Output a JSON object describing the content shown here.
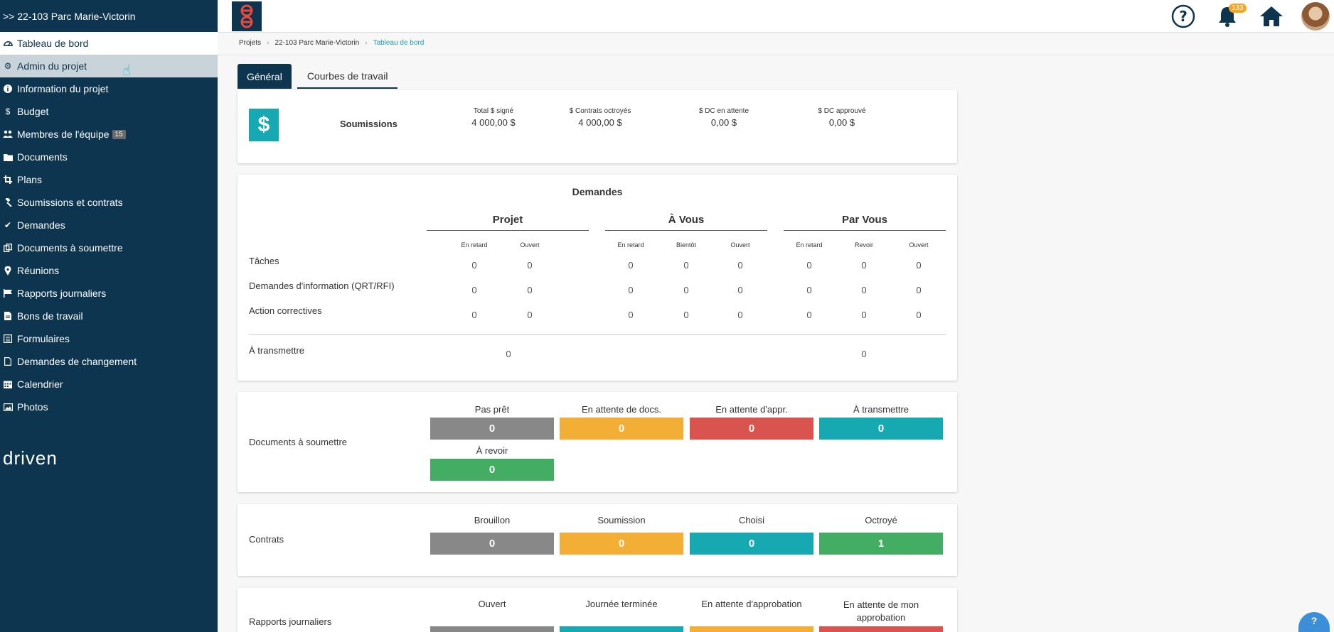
{
  "sidebar": {
    "project_title": ">> 22-103 Parc Marie-Victorin",
    "items": [
      {
        "label": "Tableau de bord",
        "icon": "dashboard-icon"
      },
      {
        "label": "Admin du projet",
        "icon": "gear-icon"
      },
      {
        "label": "Information du projet",
        "icon": "info-icon"
      },
      {
        "label": "Budget",
        "icon": "dollar-icon"
      },
      {
        "label": "Membres de l'équipe",
        "icon": "users-icon",
        "badge": "15"
      },
      {
        "label": "Documents",
        "icon": "folder-icon"
      },
      {
        "label": "Plans",
        "icon": "crop-icon"
      },
      {
        "label": "Soumissions et contrats",
        "icon": "gavel-icon"
      },
      {
        "label": "Demandes",
        "icon": "check-icon"
      },
      {
        "label": "Documents à soumettre",
        "icon": "copy-icon"
      },
      {
        "label": "Réunions",
        "icon": "map-pin-icon"
      },
      {
        "label": "Rapports journaliers",
        "icon": "flag-icon"
      },
      {
        "label": "Bons de travail",
        "icon": "file-icon"
      },
      {
        "label": "Formulaires",
        "icon": "list-icon"
      },
      {
        "label": "Demandes de changement",
        "icon": "file-outline-icon"
      },
      {
        "label": "Calendrier",
        "icon": "calendar-icon"
      },
      {
        "label": "Photos",
        "icon": "image-icon"
      }
    ],
    "brand": "driven"
  },
  "topbar": {
    "notifications_count": "133"
  },
  "breadcrumb": {
    "items": [
      "Projets",
      "22-103 Parc Marie-Victorin",
      "Tableau de bord"
    ]
  },
  "tabs": [
    "Général",
    "Courbes de travail"
  ],
  "soumissions": {
    "title": "Soumissions",
    "stats": [
      {
        "label": "Total $ signé",
        "value": "4 000,00 $"
      },
      {
        "label": "$ Contrats octroyés",
        "value": "4 000,00 $"
      },
      {
        "label": "$ DC en attente",
        "value": "0,00 $"
      },
      {
        "label": "$ DC approuvé",
        "value": "0,00 $"
      }
    ]
  },
  "demandes": {
    "title": "Demandes",
    "groups": [
      {
        "name": "Projet",
        "cols": [
          "En retard",
          "Ouvert"
        ]
      },
      {
        "name": "À Vous",
        "cols": [
          "En retard",
          "Bientôt",
          "Ouvert"
        ]
      },
      {
        "name": "Par Vous",
        "cols": [
          "En retard",
          "Revoir",
          "Ouvert"
        ]
      }
    ],
    "rows": [
      {
        "label": "Tâches",
        "values": [
          "0",
          "0",
          "0",
          "0",
          "0",
          "0",
          "0",
          "0"
        ]
      },
      {
        "label": "Demandes d'information (QRT/RFI)",
        "values": [
          "0",
          "0",
          "0",
          "0",
          "0",
          "0",
          "0",
          "0"
        ]
      },
      {
        "label": "Action correctives",
        "values": [
          "0",
          "0",
          "0",
          "0",
          "0",
          "0",
          "0",
          "0"
        ]
      }
    ],
    "transmettre": {
      "label": "À transmettre",
      "projet": "0",
      "par_vous": "0"
    }
  },
  "documents_soumettre": {
    "title": "Documents à soumettre",
    "statuses": [
      {
        "label": "Pas prêt",
        "value": "0",
        "color": "#888888"
      },
      {
        "label": "En attente de docs.",
        "value": "0",
        "color": "#f2ae35"
      },
      {
        "label": "En attente d'appr.",
        "value": "0",
        "color": "#d9534f"
      },
      {
        "label": "À transmettre",
        "value": "0",
        "color": "#17a9b1"
      },
      {
        "label": "À revoir",
        "value": "0",
        "color": "#43ad63"
      }
    ]
  },
  "contrats": {
    "title": "Contrats",
    "statuses": [
      {
        "label": "Brouillon",
        "value": "0",
        "color": "#888888"
      },
      {
        "label": "Soumission",
        "value": "0",
        "color": "#f2ae35"
      },
      {
        "label": "Choisi",
        "value": "0",
        "color": "#17a9b1"
      },
      {
        "label": "Octroyé",
        "value": "1",
        "color": "#43ad63"
      }
    ]
  },
  "rapports": {
    "title": "Rapports journaliers",
    "statuses": [
      {
        "label": "Ouvert",
        "color": "#888888"
      },
      {
        "label": "Journée terminée",
        "color": "#17a9b1"
      },
      {
        "label": "En attente d'approbation",
        "color": "#f2ae35"
      },
      {
        "label": "En attente de mon approbation",
        "color": "#d9534f"
      }
    ]
  }
}
